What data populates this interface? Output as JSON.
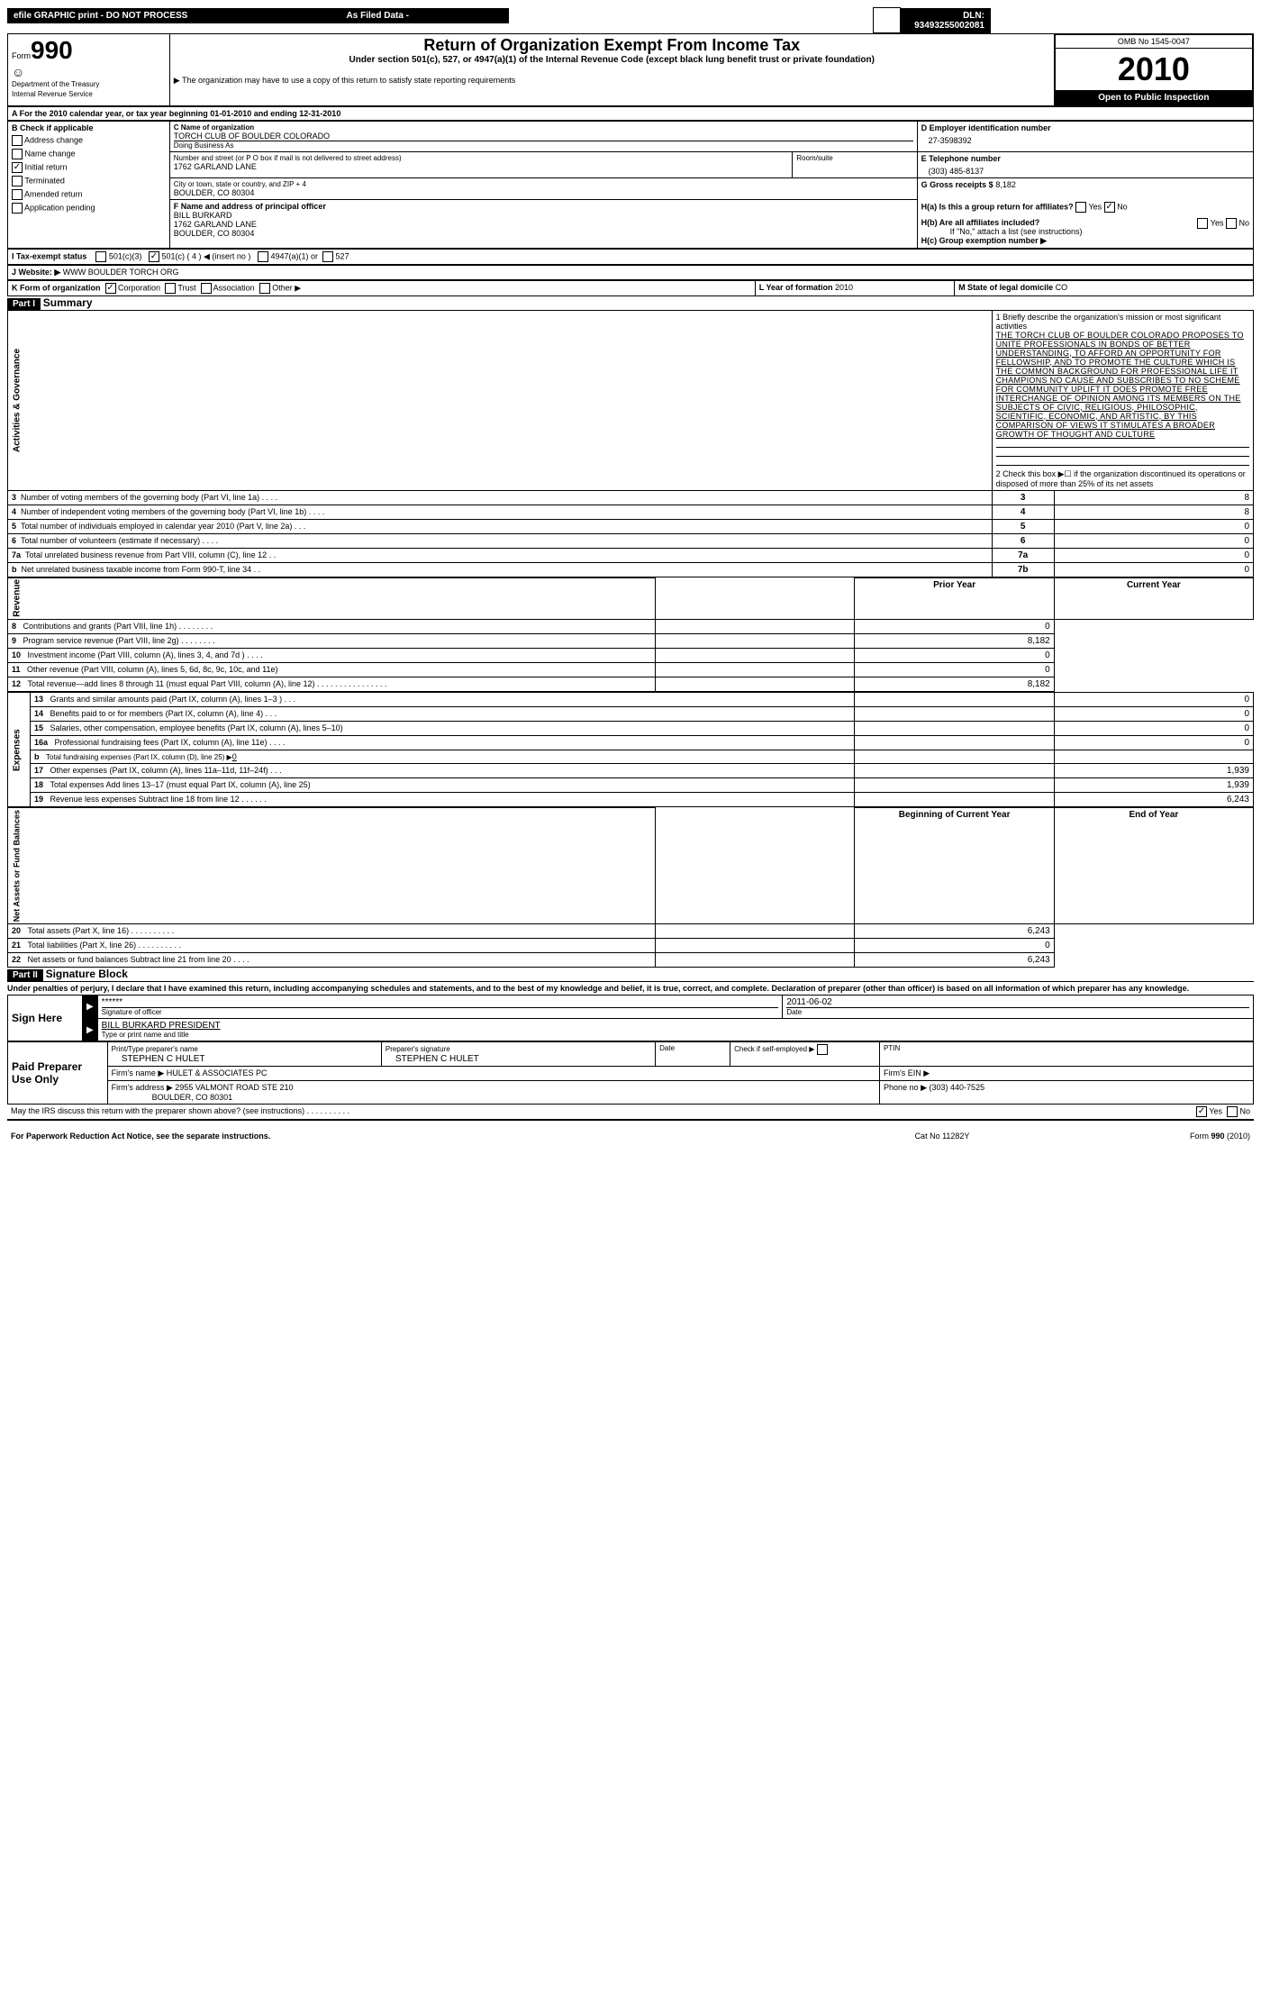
{
  "header": {
    "efile": "efile GRAPHIC print - DO NOT PROCESS",
    "asfiled": "As Filed Data -",
    "dln": "DLN: 93493255002081"
  },
  "formbox": {
    "form": "Form",
    "num": "990",
    "dept": "Department of the Treasury",
    "irs": "Internal Revenue Service"
  },
  "titlebox": {
    "title": "Return of Organization Exempt From Income Tax",
    "sub1": "Under section 501(c), 527, or 4947(a)(1) of the Internal Revenue Code (except black lung benefit trust or private foundation)",
    "sub2": "▶ The organization may have to use a copy of this return to satisfy state reporting requirements"
  },
  "rightbox": {
    "omb": "OMB No 1545-0047",
    "year": "2010",
    "open": "Open to Public Inspection"
  },
  "A": {
    "line": "A For the 2010 calendar year, or tax year beginning 01-01-2010   and ending 12-31-2010"
  },
  "B": {
    "hdr": "B Check if applicable",
    "items": [
      "Address change",
      "Name change",
      "Initial return",
      "Terminated",
      "Amended return",
      "Application pending"
    ],
    "checked": [
      false,
      false,
      true,
      false,
      false,
      false
    ]
  },
  "C": {
    "namehdr": "C Name of organization",
    "name": "TORCH CLUB OF BOULDER COLORADO",
    "dba": "Doing Business As",
    "streethdr": "Number and street (or P O  box if mail is not delivered to street address)",
    "street": "1762 GARLAND LANE",
    "room": "Room/suite",
    "cityhdr": "City or town, state or country, and ZIP + 4",
    "city": "BOULDER, CO  80304"
  },
  "D": {
    "hdr": "D Employer identification number",
    "val": "27-3598392"
  },
  "E": {
    "hdr": "E Telephone number",
    "val": "(303) 485-8137"
  },
  "G": {
    "hdr": "G Gross receipts $",
    "val": "8,182"
  },
  "F": {
    "hdr": "F   Name and address of principal officer",
    "name": "BILL BURKARD",
    "addr1": "1762 GARLAND LANE",
    "addr2": "BOULDER, CO  80304"
  },
  "H": {
    "a": "H(a)  Is this a group return for affiliates?",
    "b": "H(b)  Are all affiliates included?",
    "bnote": "If \"No,\" attach a list  (see instructions)",
    "c": "H(c)   Group exemption number ▶",
    "ha_yes": "Yes",
    "ha_no": "No",
    "hb_yes": "Yes",
    "hb_no": "No",
    "ha_checked": "No"
  },
  "I": {
    "label": "I   Tax-exempt status",
    "opts": {
      "a": "501(c)(3)",
      "b": "501(c) ( 4 ) ◀ (insert no )",
      "c": "4947(a)(1) or",
      "d": "527"
    },
    "checked": "b"
  },
  "J": {
    "label": "J  Website: ▶",
    "val": "WWW BOULDER TORCH ORG"
  },
  "K": {
    "label": "K Form of organization",
    "opts": [
      "Corporation",
      "Trust",
      "Association",
      "Other ▶"
    ],
    "checked": 0
  },
  "L": {
    "label": "L Year of formation",
    "val": "2010"
  },
  "M": {
    "label": "M State of legal domicile",
    "val": "CO"
  },
  "part1": {
    "hdr": "Part I",
    "title": "Summary"
  },
  "mission": {
    "lead": "1  Briefly describe the organization's mission or most significant activities",
    "text": "THE TORCH CLUB OF BOULDER COLORADO PROPOSES TO UNITE PROFESSIONALS IN BONDS OF BETTER UNDERSTANDING, TO AFFORD AN OPPORTUNITY FOR FELLOWSHIP, AND TO PROMOTE THE CULTURE WHICH IS THE COMMON BACKGROUND FOR PROFESSIONAL LIFE  IT CHAMPIONS NO CAUSE AND SUBSCRIBES TO NO SCHEME FOR COMMUNITY UPLIFT  IT DOES PROMOTE FREE INTERCHANGE OF OPINION AMONG ITS MEMBERS ON THE SUBJECTS OF CIVIC, RELIGIOUS, PHILOSOPHIC, SCIENTIFIC, ECONOMIC, AND ARTISTIC, BY THIS COMPARISON OF VIEWS IT STIMULATES A BROADER GROWTH OF THOUGHT AND CULTURE"
  },
  "line2": "2   Check this box ▶☐ if the organization discontinued its operations or disposed of more than 25% of its net assets",
  "gov": [
    {
      "n": "3",
      "label": "Number of voting members of the governing body (Part VI, line 1a)   .   .   .   .",
      "ref": "3",
      "val": "8"
    },
    {
      "n": "4",
      "label": "Number of independent voting members of the governing body (Part VI, line 1b)   .   .   .   .",
      "ref": "4",
      "val": "8"
    },
    {
      "n": "5",
      "label": "Total number of individuals employed in calendar year 2010 (Part V, line 2a)   .   .   .",
      "ref": "5",
      "val": "0"
    },
    {
      "n": "6",
      "label": "Total number of volunteers (estimate if necessary)   .   .   .   .",
      "ref": "6",
      "val": "0"
    },
    {
      "n": "7a",
      "label": "Total unrelated business revenue from Part VIII, column (C), line 12   .   .",
      "ref": "7a",
      "val": "0"
    },
    {
      "n": "b",
      "label": "Net unrelated business taxable income from Form 990-T, line 34   .   .",
      "ref": "7b",
      "val": "0"
    }
  ],
  "colhdr": {
    "prior": "Prior Year",
    "curr": "Current Year",
    "boy": "Beginning of Current Year",
    "eoy": "End of Year"
  },
  "revenue": [
    {
      "n": "8",
      "label": "Contributions and grants (Part VIII, line 1h)   .   .   .   .   .   .   .   .",
      "prior": "",
      "curr": "0"
    },
    {
      "n": "9",
      "label": "Program service revenue (Part VIII, line 2g)   .   .   .   .   .   .   .   .",
      "prior": "",
      "curr": "8,182"
    },
    {
      "n": "10",
      "label": "Investment income (Part VIII, column (A), lines 3, 4, and 7d )   .   .   .   .",
      "prior": "",
      "curr": "0"
    },
    {
      "n": "11",
      "label": "Other revenue (Part VIII, column (A), lines 5, 6d, 8c, 9c, 10c, and 11e)",
      "prior": "",
      "curr": "0"
    },
    {
      "n": "12",
      "label": "Total revenue—add lines 8 through 11 (must equal Part VIII, column (A), line 12)  .   .   .   .   .   .   .   .   .   .   .   .   .   .   .   .",
      "prior": "",
      "curr": "8,182"
    }
  ],
  "expenses": [
    {
      "n": "13",
      "label": "Grants and similar amounts paid (Part IX, column (A), lines 1–3 )   .   .   .",
      "prior": "",
      "curr": "0"
    },
    {
      "n": "14",
      "label": "Benefits paid to or for members (Part IX, column (A), line 4)   .   .   .",
      "prior": "",
      "curr": "0"
    },
    {
      "n": "15",
      "label": "Salaries, other compensation, employee benefits (Part IX, column (A), lines 5–10)",
      "prior": "",
      "curr": "0"
    },
    {
      "n": "16a",
      "label": "Professional fundraising fees (Part IX, column (A), line 11e)   .   .   .   .",
      "prior": "",
      "curr": "0"
    },
    {
      "n": "b",
      "label": "Total fundraising expenses (Part IX, column (D), line 25) ▶",
      "prior": "",
      "curr": "",
      "fund": "0"
    },
    {
      "n": "17",
      "label": "Other expenses (Part IX, column (A), lines 11a–11d, 11f–24f)   .   .   .",
      "prior": "",
      "curr": "1,939"
    },
    {
      "n": "18",
      "label": "Total expenses  Add lines 13–17 (must equal Part IX, column (A), line 25)",
      "prior": "",
      "curr": "1,939"
    },
    {
      "n": "19",
      "label": "Revenue less expenses  Subtract line 18 from line 12   .   .   .   .   .   .",
      "prior": "",
      "curr": "6,243"
    }
  ],
  "netassets": [
    {
      "n": "20",
      "label": "Total assets (Part X, line 16)   .   .   .   .   .   .   .   .   .   .",
      "prior": "",
      "curr": "6,243"
    },
    {
      "n": "21",
      "label": "Total liabilities (Part X, line 26)   .   .   .   .   .   .   .   .   .   .",
      "prior": "",
      "curr": "0"
    },
    {
      "n": "22",
      "label": "Net assets or fund balances  Subtract line 21 from line 20   .   .   .   .",
      "prior": "",
      "curr": "6,243"
    }
  ],
  "part2": {
    "hdr": "Part II",
    "title": "Signature Block"
  },
  "penalty": "Under penalties of perjury, I declare that I have examined this return, including accompanying schedules and statements, and to the best of my knowledge and belief, it is true, correct, and complete. Declaration of preparer (other than officer) is based on all information of which preparer has any knowledge.",
  "sign": {
    "here": "Sign Here",
    "stars": "******",
    "sigoff": "Signature of officer",
    "date": "2011-06-02",
    "datelbl": "Date",
    "name": "BILL BURKARD PRESIDENT",
    "typeline": "Type or print name and title"
  },
  "paid": {
    "here": "Paid Preparer Use Only",
    "pt": "Print/Type preparer's name",
    "ptname": "STEPHEN C HULET",
    "ps": "Preparer's signature",
    "psname": "STEPHEN C HULET",
    "datelbl": "Date",
    "self": "Check if self-employed ▶",
    "ptin": "PTIN",
    "firm": "Firm's name  ▶",
    "firmname": "HULET & ASSOCIATES PC",
    "ein": "Firm's EIN   ▶",
    "addr": "Firm's address ▶",
    "addrval": "2955 VALMONT ROAD STE 210",
    "addrcity": "BOULDER, CO  80301",
    "phone": "Phone no  ▶",
    "phoneval": "(303) 440-7525"
  },
  "discuss": {
    "q": "May the IRS discuss this return with the preparer shown above? (see instructions)   .   .   .   .   .   .   .   .   .   .",
    "yes": "Yes",
    "no": "No",
    "checked": "Yes"
  },
  "footer": {
    "pra": "For Paperwork Reduction Act Notice, see the separate instructions.",
    "cat": "Cat No 11282Y",
    "form": "Form 990 (2010)"
  },
  "vlabels": {
    "gov": "Activities & Governance",
    "rev": "Revenue",
    "exp": "Expenses",
    "net": "Net Assets or Fund Balances"
  }
}
